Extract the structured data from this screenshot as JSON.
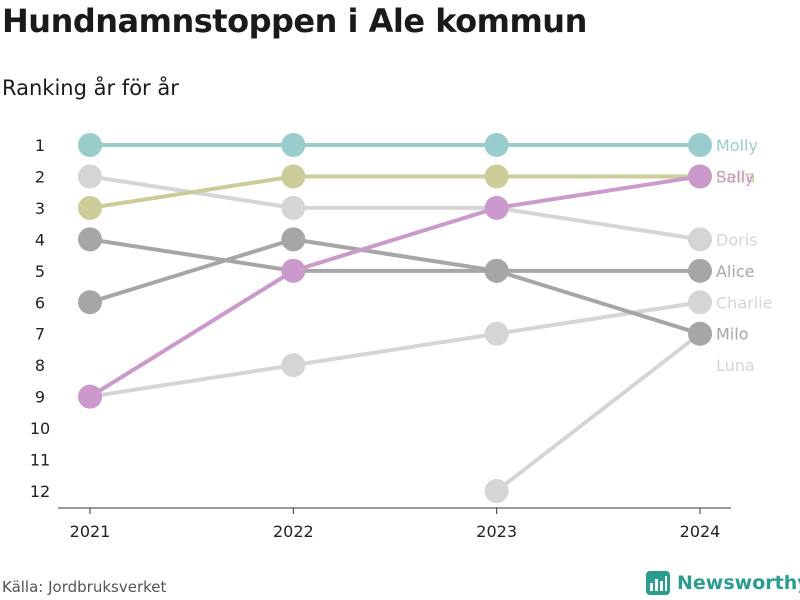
{
  "title": "Hundnamnstoppen i Ale kommun",
  "subtitle": "Ranking år för år",
  "source": "Källa: Jordbruksverket",
  "brand": {
    "name": "Newsworthy",
    "color": "#2a9d8f"
  },
  "chart_data": {
    "type": "line",
    "x": [
      "2021",
      "2022",
      "2023",
      "2024"
    ],
    "y_ticks": [
      "1",
      "2",
      "3",
      "4",
      "5",
      "6",
      "7",
      "8",
      "9",
      "10",
      "11",
      "12"
    ],
    "ylim": [
      1,
      12
    ],
    "y_inverted": true,
    "legend_placement": "right-end-labels",
    "grid": false,
    "series": [
      {
        "name": "Luna",
        "color": "#d5d5d5",
        "values": [
          null,
          null,
          12,
          7
        ]
      },
      {
        "name": "Charlie",
        "color": "#d5d5d5",
        "values": [
          9,
          8,
          7,
          6
        ]
      },
      {
        "name": "Doris",
        "color": "#d5d5d5",
        "values": [
          2,
          3,
          3,
          4
        ]
      },
      {
        "name": "Milo",
        "color": "#a6a6a6",
        "values": [
          6,
          4,
          5,
          7
        ]
      },
      {
        "name": "Alice",
        "color": "#a6a6a6",
        "values": [
          4,
          5,
          5,
          5
        ]
      },
      {
        "name": "Bella",
        "color": "#cccc99",
        "values": [
          3,
          2,
          2,
          2
        ]
      },
      {
        "name": "Sally",
        "color": "#cc99cc",
        "values": [
          9,
          5,
          3,
          2
        ]
      },
      {
        "name": "Molly",
        "color": "#99cccc",
        "values": [
          1,
          1,
          1,
          1
        ]
      }
    ]
  }
}
